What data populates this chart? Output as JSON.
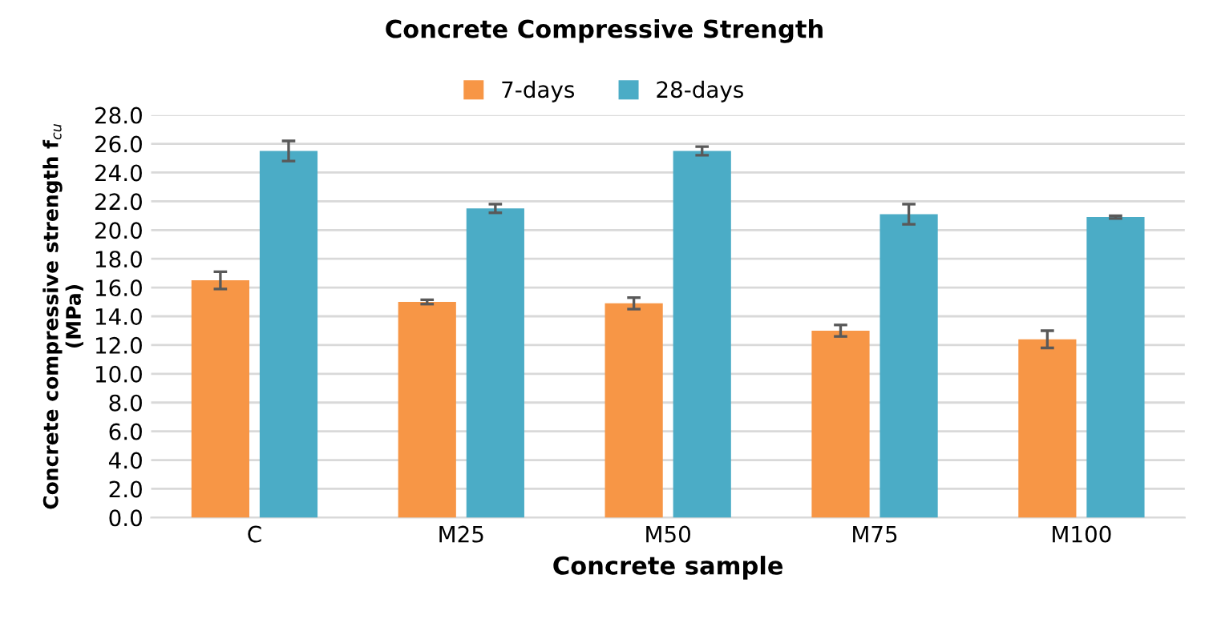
{
  "chart_data": {
    "type": "bar",
    "title": "Concrete Compressive Strength",
    "xlabel": "Concrete sample",
    "ylabel": "Concrete compressive strength f$_{cu}$\n(MPa)",
    "categories": [
      "C",
      "M25",
      "M50",
      "M75",
      "M100"
    ],
    "series": [
      {
        "name": "7-days",
        "color": "#f79646",
        "values": [
          16.5,
          15.0,
          14.9,
          13.0,
          12.4
        ],
        "errors": [
          0.6,
          0.15,
          0.4,
          0.4,
          0.6
        ]
      },
      {
        "name": "28-days",
        "color": "#4bacc6",
        "values": [
          25.5,
          21.5,
          25.5,
          21.1,
          20.9
        ],
        "errors": [
          0.7,
          0.3,
          0.3,
          0.7,
          0.1
        ]
      }
    ],
    "ylim": [
      0,
      28
    ],
    "yticks": [
      {
        "value": 0,
        "label": "0.0"
      },
      {
        "value": 2,
        "label": "2.0"
      },
      {
        "value": 4,
        "label": "4.0"
      },
      {
        "value": 6,
        "label": "6.0"
      },
      {
        "value": 8,
        "label": "8.0"
      },
      {
        "value": 10,
        "label": "10.0"
      },
      {
        "value": 12,
        "label": "12.0"
      },
      {
        "value": 14,
        "label": "14.0"
      },
      {
        "value": 16,
        "label": "16.0"
      },
      {
        "value": 18,
        "label": "18.0"
      },
      {
        "value": 20,
        "label": "20.0"
      },
      {
        "value": 22,
        "label": "22.0"
      },
      {
        "value": 24,
        "label": "24.0"
      },
      {
        "value": 26,
        "label": "26.0"
      },
      {
        "value": 28,
        "label": "28.0"
      }
    ],
    "grid": "y",
    "legend": "top"
  }
}
